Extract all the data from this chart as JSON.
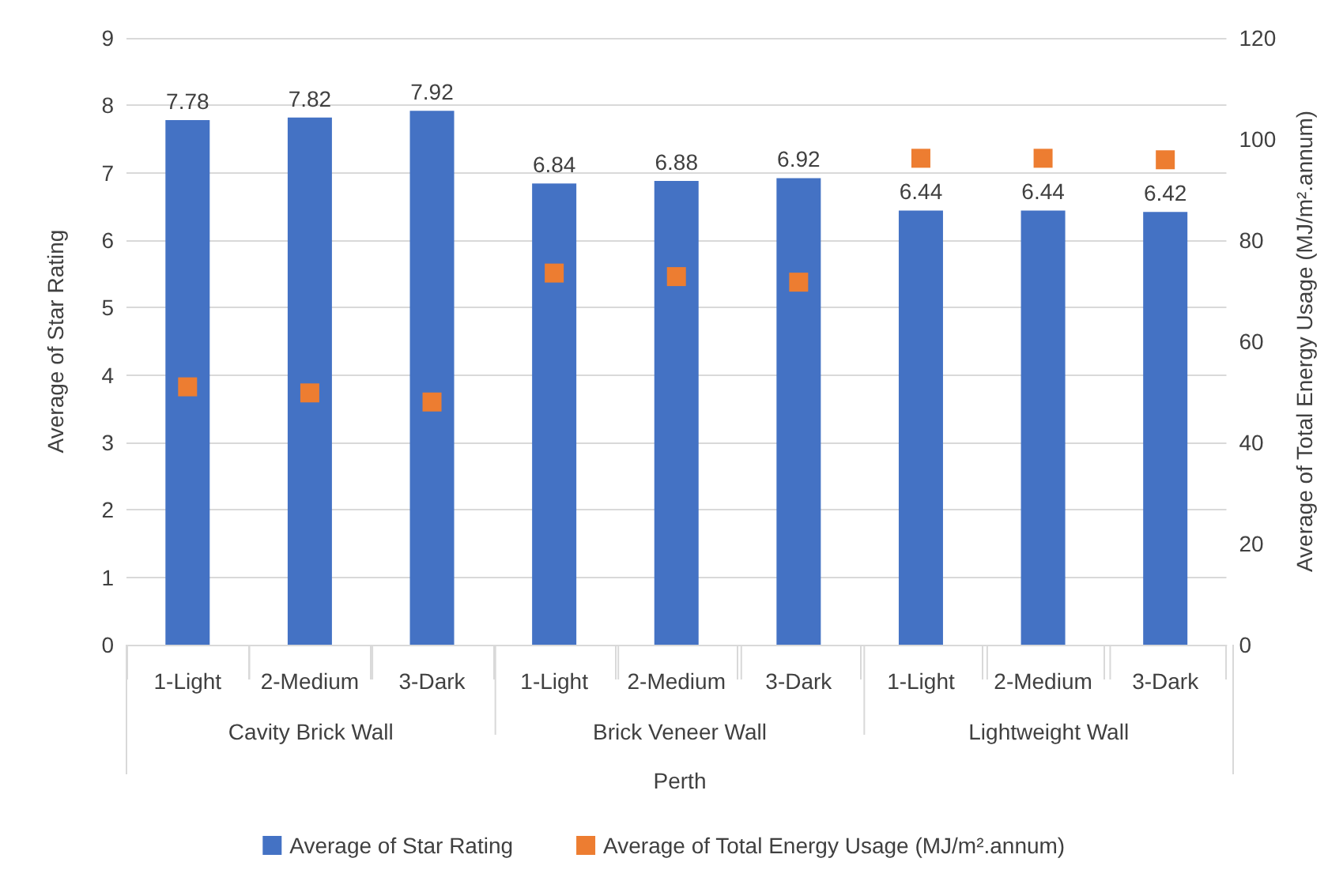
{
  "chart_data": {
    "type": "bar",
    "ylabel": "Average of Star Rating",
    "y2label": "Average of Total Energy Usage (MJ/m².annum)",
    "categories": [
      "1-Light",
      "2-Medium",
      "3-Dark",
      "1-Light",
      "2-Medium",
      "3-Dark",
      "1-Light",
      "2-Medium",
      "3-Dark"
    ],
    "annotations": [
      "Cavity Brick Wall",
      "Brick Veneer Wall",
      "Lightweight Wall",
      "Perth"
    ],
    "series": [
      {
        "name": "Average of Star Rating",
        "color": "#4472c4",
        "values": [
          7.78,
          7.82,
          7.92,
          6.84,
          6.88,
          6.92,
          6.44,
          6.44,
          6.42
        ],
        "value_labels": [
          "7.78",
          "7.82",
          "7.92",
          "6.84",
          "6.88",
          "6.92",
          "6.44",
          "6.44",
          "6.42"
        ]
      },
      {
        "name": "Average of Total Energy Usage (MJ/m².annum)",
        "type": "scatter",
        "axis": "y2",
        "marker": "square",
        "color": "#ed7d31",
        "values": [
          51.0,
          49.8,
          48.0,
          73.5,
          72.8,
          71.7,
          96.2,
          96.2,
          95.9
        ]
      }
    ],
    "ylim": [
      0,
      9
    ],
    "yticks": [
      0,
      1,
      2,
      3,
      4,
      5,
      6,
      7,
      8,
      9
    ],
    "y2lim": [
      0,
      120
    ],
    "y2ticks": [
      0,
      20,
      40,
      60,
      80,
      100,
      120
    ],
    "grid": "y",
    "legend": "bottom"
  }
}
